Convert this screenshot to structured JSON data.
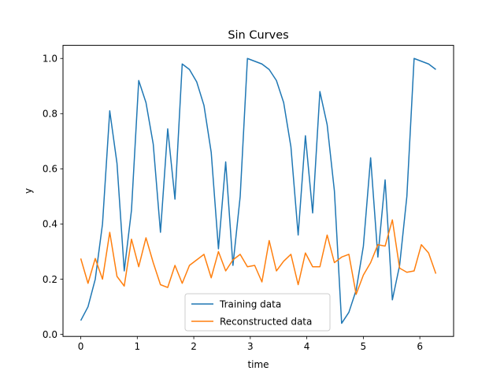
{
  "chart_data": {
    "type": "line",
    "title": "Sin Curves",
    "xlabel": "time",
    "ylabel": "y",
    "xlim": [
      -0.3142,
      6.5973
    ],
    "ylim": [
      -0.0075,
      1.0475
    ],
    "xticks": [
      0,
      1,
      2,
      3,
      4,
      5,
      6
    ],
    "xtick_labels": [
      "0",
      "1",
      "2",
      "3",
      "4",
      "5",
      "6"
    ],
    "yticks": [
      0.0,
      0.2,
      0.4,
      0.6,
      0.8,
      1.0
    ],
    "ytick_labels": [
      "0.0",
      "0.2",
      "0.4",
      "0.6",
      "0.8",
      "1.0"
    ],
    "grid": false,
    "legend_position": "lower center",
    "x": [
      0.0,
      0.1282,
      0.2565,
      0.3847,
      0.5129,
      0.6411,
      0.7694,
      0.8976,
      1.0258,
      1.1541,
      1.2823,
      1.4105,
      1.5387,
      1.667,
      1.7952,
      1.9234,
      2.0517,
      2.1799,
      2.3081,
      2.4363,
      2.5646,
      2.6928,
      2.821,
      2.9493,
      3.0775,
      3.2057,
      3.3339,
      3.4622,
      3.5904,
      3.7186,
      3.8469,
      3.9751,
      4.1033,
      4.2315,
      4.3598,
      4.488,
      4.6162,
      4.7445,
      4.8727,
      5.0009,
      5.1291,
      5.2574,
      5.3856,
      5.5138,
      5.6421,
      5.7703,
      5.8985,
      6.0267,
      6.155,
      6.2832
    ],
    "series": [
      {
        "name": "Training data",
        "color": "#1f77b4",
        "values": [
          0.05,
          0.1,
          0.2,
          0.4,
          0.81,
          0.62,
          0.23,
          0.45,
          0.92,
          0.84,
          0.69,
          0.37,
          0.745,
          0.49,
          0.98,
          0.96,
          0.915,
          0.83,
          0.66,
          0.31,
          0.625,
          0.25,
          0.5,
          1.0,
          0.99,
          0.98,
          0.96,
          0.92,
          0.84,
          0.68,
          0.36,
          0.72,
          0.44,
          0.88,
          0.76,
          0.52,
          0.04,
          0.08,
          0.16,
          0.32,
          0.64,
          0.28,
          0.56,
          0.125,
          0.25,
          0.5,
          1.0,
          0.99,
          0.98,
          0.96
        ]
      },
      {
        "name": "Reconstructed data",
        "color": "#ff7f0e",
        "values": [
          0.275,
          0.185,
          0.275,
          0.2,
          0.37,
          0.21,
          0.175,
          0.345,
          0.245,
          0.35,
          0.26,
          0.18,
          0.17,
          0.25,
          0.185,
          0.25,
          0.27,
          0.29,
          0.205,
          0.3,
          0.23,
          0.27,
          0.29,
          0.245,
          0.25,
          0.19,
          0.34,
          0.23,
          0.265,
          0.29,
          0.18,
          0.295,
          0.245,
          0.245,
          0.36,
          0.26,
          0.28,
          0.29,
          0.145,
          0.215,
          0.26,
          0.325,
          0.32,
          0.415,
          0.24,
          0.225,
          0.23,
          0.325,
          0.295,
          0.22
        ]
      }
    ]
  }
}
